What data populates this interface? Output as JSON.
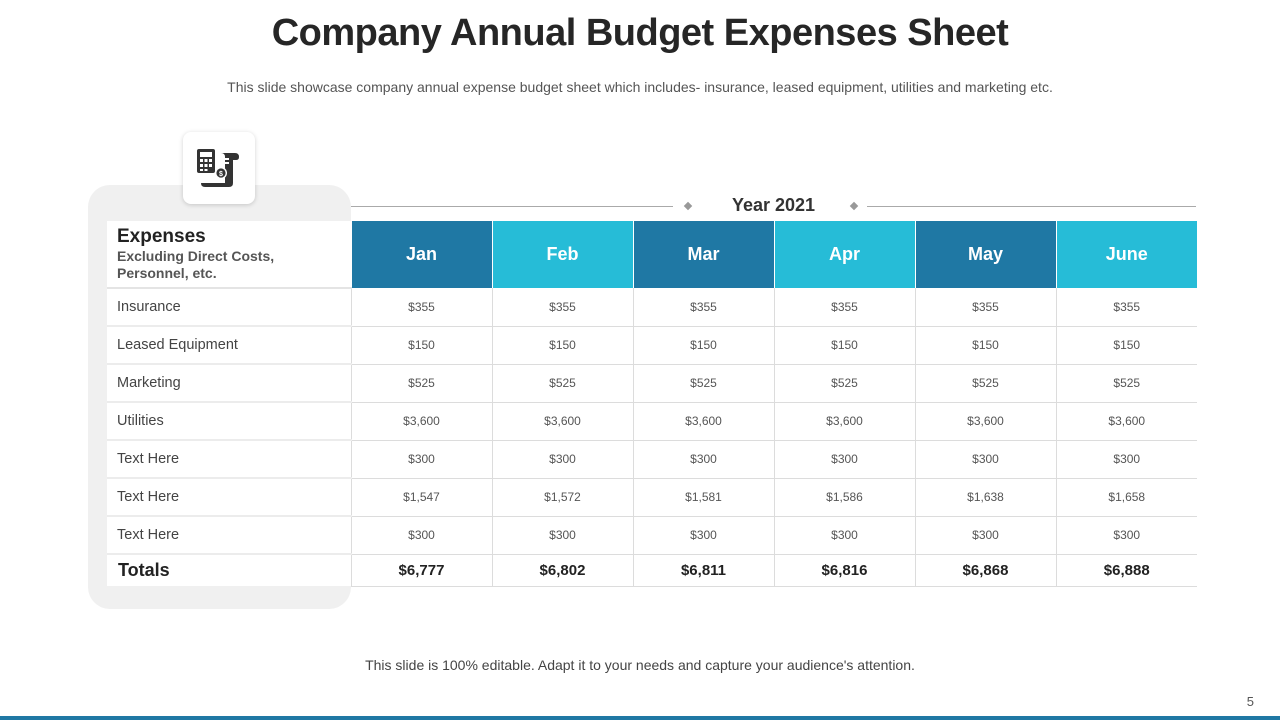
{
  "title": "Company Annual Budget Expenses Sheet",
  "subtitle": "This slide showcase company annual expense budget sheet which includes- insurance, leased equipment, utilities and marketing etc.",
  "icon": "calculator-bill-icon",
  "year_label": "Year 2021",
  "table": {
    "header_title": "Expenses",
    "header_subtitle": "Excluding Direct Costs, Personnel, etc.",
    "months": [
      "Jan",
      "Feb",
      "Mar",
      "Apr",
      "May",
      "June"
    ],
    "rows": [
      {
        "label": "Insurance",
        "values": [
          "$355",
          "$355",
          "$355",
          "$355",
          "$355",
          "$355"
        ]
      },
      {
        "label": "Leased Equipment",
        "values": [
          "$150",
          "$150",
          "$150",
          "$150",
          "$150",
          "$150"
        ]
      },
      {
        "label": "Marketing",
        "values": [
          "$525",
          "$525",
          "$525",
          "$525",
          "$525",
          "$525"
        ]
      },
      {
        "label": "Utilities",
        "values": [
          "$3,600",
          "$3,600",
          "$3,600",
          "$3,600",
          "$3,600",
          "$3,600"
        ]
      },
      {
        "label": "Text Here",
        "values": [
          "$300",
          "$300",
          "$300",
          "$300",
          "$300",
          "$300"
        ]
      },
      {
        "label": "Text Here",
        "values": [
          "$1,547",
          "$1,572",
          "$1,581",
          "$1,586",
          "$1,638",
          "$1,658"
        ]
      },
      {
        "label": "Text Here",
        "values": [
          "$300",
          "$300",
          "$300",
          "$300",
          "$300",
          "$300"
        ]
      }
    ],
    "totals_label": "Totals",
    "totals": [
      "$6,777",
      "$6,802",
      "$6,811",
      "$6,816",
      "$6,868",
      "$6,888"
    ]
  },
  "footer": "This slide is 100% editable. Adapt it to your needs and capture your audience's attention.",
  "page_number": "5",
  "colors": {
    "month_dark": "#1f78a4",
    "month_light": "#26bcd7",
    "card_bg": "#f0f0f0"
  }
}
